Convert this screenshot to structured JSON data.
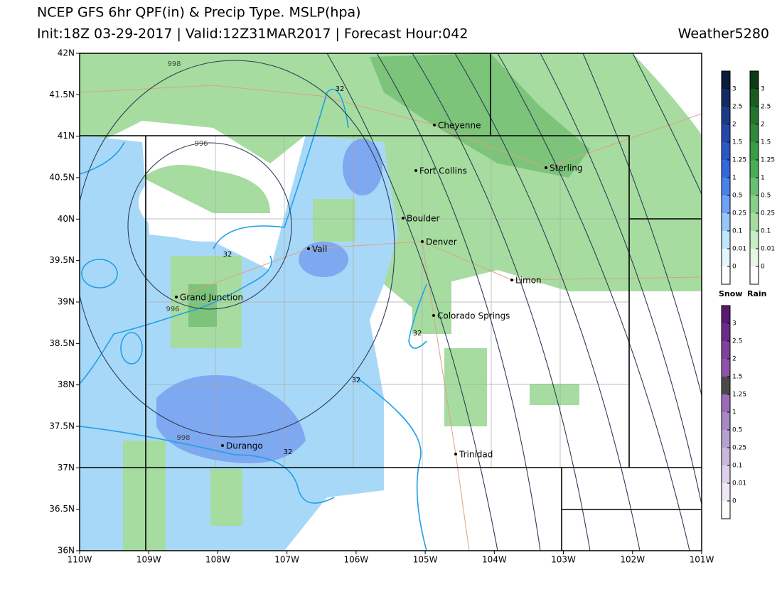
{
  "header": {
    "title": "NCEP GFS 6hr QPF(in) & Precip Type. MSLP(hpa)",
    "subtitle": "Init:18Z 03-29-2017 | Valid:12Z31MAR2017 | Forecast Hour:042",
    "credit": "Weather5280"
  },
  "map": {
    "lat_labels": [
      "42N",
      "41.5N",
      "41N",
      "40.5N",
      "40N",
      "39.5N",
      "39N",
      "38.5N",
      "38N",
      "37.5N",
      "37N",
      "36.5N",
      "36N"
    ],
    "lon_labels": [
      "110W",
      "109W",
      "108W",
      "107W",
      "106W",
      "105W",
      "104W",
      "103W",
      "102W",
      "101W"
    ],
    "cities": [
      "Cheyenne",
      "Fort Collins",
      "Sterling",
      "Boulder",
      "Denver",
      "Vail",
      "Limon",
      "Grand Junction",
      "Colorado Springs",
      "Durango",
      "Trinidad"
    ],
    "isobar_labels": [
      "998",
      "996",
      "996",
      "998"
    ],
    "freezing_labels": [
      "32",
      "32",
      "32",
      "32",
      "32"
    ]
  },
  "legend": {
    "levels": [
      "3",
      "2.5",
      "2",
      "1.5",
      "1.25",
      "1",
      "0.5",
      "0.25",
      "0.1",
      "0.01",
      "0"
    ],
    "snow_label": "Snow",
    "rain_label": "Rain"
  }
}
